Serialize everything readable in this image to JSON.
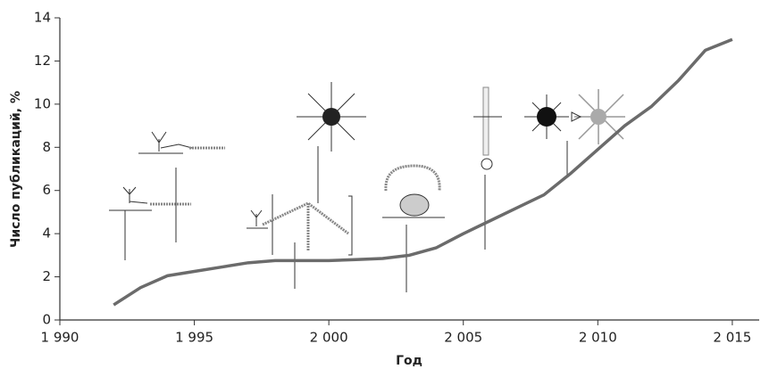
{
  "chart_data": {
    "type": "line",
    "x_label": "Год",
    "y_label": "Число публикаций, %",
    "x": [
      1992,
      1993,
      1994,
      1995,
      1996,
      1997,
      1998,
      1999,
      2000,
      2001,
      2002,
      2003,
      2004,
      2005,
      2006,
      2007,
      2008,
      2009,
      2010,
      2011,
      2012,
      2013,
      2014,
      2015
    ],
    "series": [
      {
        "color": "#6b6b6b",
        "values": [
          0.7,
          1.5,
          2.05,
          2.25,
          2.45,
          2.65,
          2.75,
          2.75,
          2.75,
          2.8,
          2.85,
          3.0,
          3.35,
          4.0,
          4.6,
          5.2,
          5.8,
          6.8,
          7.9,
          9.0,
          9.9,
          11.1,
          12.5,
          13.0
        ]
      }
    ],
    "xlim": [
      1990,
      2016
    ],
    "ylim": [
      0,
      14
    ],
    "xticks": [
      {
        "value": 1990,
        "label": "1 990"
      },
      {
        "value": 1995,
        "label": "1 995"
      },
      {
        "value": 2000,
        "label": "2 000"
      },
      {
        "value": 2005,
        "label": "2 005"
      },
      {
        "value": 2010,
        "label": "2 010"
      },
      {
        "value": 2015,
        "label": "2 015"
      }
    ],
    "yticks": [
      0,
      2,
      4,
      6,
      8,
      10,
      12,
      14
    ]
  }
}
